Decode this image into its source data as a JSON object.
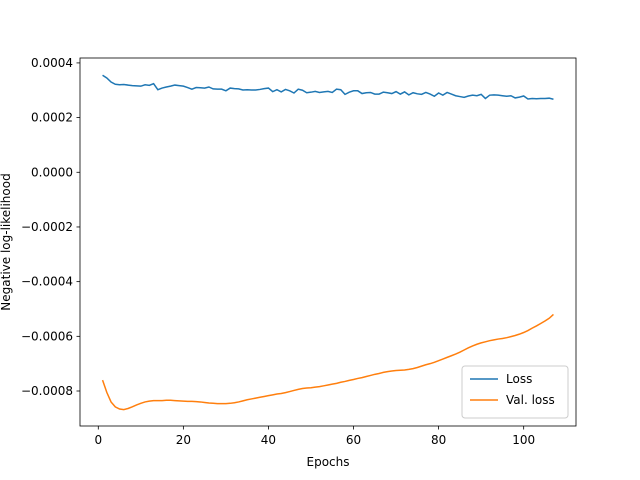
{
  "chart_data": {
    "type": "line",
    "x_label": "Epochs",
    "y_label": "Negative log-likelihood",
    "x": [
      1,
      2,
      3,
      4,
      5,
      6,
      7,
      8,
      9,
      10,
      11,
      12,
      13,
      14,
      15,
      16,
      17,
      18,
      19,
      20,
      21,
      22,
      23,
      24,
      25,
      26,
      27,
      28,
      29,
      30,
      31,
      32,
      33,
      34,
      35,
      36,
      37,
      38,
      39,
      40,
      41,
      42,
      43,
      44,
      45,
      46,
      47,
      48,
      49,
      50,
      51,
      52,
      53,
      54,
      55,
      56,
      57,
      58,
      59,
      60,
      61,
      62,
      63,
      64,
      65,
      66,
      67,
      68,
      69,
      70,
      71,
      72,
      73,
      74,
      75,
      76,
      77,
      78,
      79,
      80,
      81,
      82,
      83,
      84,
      85,
      86,
      87,
      88,
      89,
      90,
      91,
      92,
      93,
      94,
      95,
      96,
      97,
      98,
      99,
      100,
      101,
      102,
      103,
      104,
      105,
      106,
      107
    ],
    "series": [
      {
        "name": "Loss",
        "color": "#1f77b4",
        "values": [
          0.000355,
          0.000345,
          0.00033,
          0.000322,
          0.00032,
          0.000321,
          0.000319,
          0.000317,
          0.000316,
          0.000315,
          0.00032,
          0.000318,
          0.000324,
          0.000302,
          0.000308,
          0.000312,
          0.000315,
          0.000319,
          0.000317,
          0.000315,
          0.00031,
          0.000304,
          0.00031,
          0.000309,
          0.000308,
          0.000312,
          0.000305,
          0.000304,
          0.000304,
          0.000298,
          0.000308,
          0.000306,
          0.000305,
          0.000301,
          0.000302,
          0.000301,
          0.000301,
          0.000303,
          0.000306,
          0.000308,
          0.000295,
          0.000302,
          0.000294,
          0.000303,
          0.000298,
          0.00029,
          0.000304,
          0.0003,
          0.000291,
          0.000293,
          0.000296,
          0.000292,
          0.000294,
          0.000296,
          0.000292,
          0.000304,
          0.000302,
          0.000285,
          0.000293,
          0.000298,
          0.000298,
          0.000288,
          0.000291,
          0.000292,
          0.000286,
          0.000286,
          0.000293,
          0.000291,
          0.000288,
          0.000295,
          0.000286,
          0.000294,
          0.000283,
          0.000291,
          0.000287,
          0.000285,
          0.000292,
          0.000286,
          0.000278,
          0.00029,
          0.000282,
          0.000292,
          0.000286,
          0.00028,
          0.000277,
          0.000274,
          0.000279,
          0.000282,
          0.00028,
          0.000285,
          0.00027,
          0.000282,
          0.000283,
          0.000282,
          0.00028,
          0.000278,
          0.00028,
          0.000272,
          0.000275,
          0.000279,
          0.000268,
          0.00027,
          0.000269,
          0.00027,
          0.00027,
          0.000271,
          0.000267
        ]
      },
      {
        "name": "Val. loss",
        "color": "#ff7f0e",
        "values": [
          -0.00076,
          -0.000805,
          -0.00084,
          -0.000858,
          -0.000866,
          -0.000868,
          -0.000864,
          -0.000858,
          -0.000851,
          -0.000845,
          -0.00084,
          -0.000837,
          -0.000835,
          -0.000835,
          -0.000835,
          -0.000834,
          -0.000834,
          -0.000835,
          -0.000836,
          -0.000837,
          -0.000838,
          -0.000838,
          -0.000839,
          -0.00084,
          -0.000842,
          -0.000844,
          -0.000845,
          -0.000846,
          -0.000846,
          -0.000846,
          -0.000845,
          -0.000843,
          -0.00084,
          -0.000836,
          -0.000832,
          -0.000829,
          -0.000826,
          -0.000823,
          -0.00082,
          -0.000817,
          -0.000814,
          -0.000811,
          -0.000809,
          -0.000806,
          -0.000802,
          -0.000798,
          -0.000794,
          -0.000791,
          -0.000789,
          -0.000788,
          -0.000786,
          -0.000784,
          -0.000781,
          -0.000778,
          -0.000775,
          -0.000772,
          -0.000768,
          -0.000765,
          -0.000761,
          -0.000758,
          -0.000754,
          -0.000751,
          -0.000747,
          -0.000743,
          -0.000739,
          -0.000736,
          -0.000732,
          -0.000729,
          -0.000727,
          -0.000725,
          -0.000724,
          -0.000723,
          -0.000721,
          -0.000718,
          -0.000714,
          -0.000709,
          -0.000704,
          -0.0007,
          -0.000695,
          -0.000689,
          -0.000683,
          -0.000677,
          -0.000671,
          -0.000665,
          -0.000658,
          -0.00065,
          -0.000642,
          -0.000635,
          -0.000629,
          -0.000624,
          -0.00062,
          -0.000616,
          -0.000613,
          -0.00061,
          -0.000608,
          -0.000605,
          -0.000601,
          -0.000597,
          -0.000592,
          -0.000586,
          -0.000579,
          -0.00057,
          -0.000562,
          -0.000553,
          -0.000544,
          -0.000534,
          -0.00052
        ]
      }
    ],
    "xlim": [
      -4.3,
      112.3
    ],
    "xticks": [
      0,
      20,
      40,
      60,
      80,
      100
    ],
    "ylim": [
      -0.000928,
      0.000418
    ],
    "yticks": [
      {
        "value": -0.0008,
        "label": "−0.0008"
      },
      {
        "value": -0.0006,
        "label": "−0.0006"
      },
      {
        "value": -0.0004,
        "label": "−0.0004"
      },
      {
        "value": -0.0002,
        "label": "−0.0002"
      },
      {
        "value": 0,
        "label": "0.0000"
      },
      {
        "value": 0.0002,
        "label": "0.0002"
      },
      {
        "value": 0.0004,
        "label": "0.0004"
      }
    ],
    "grid": false,
    "legend": "lower right"
  }
}
